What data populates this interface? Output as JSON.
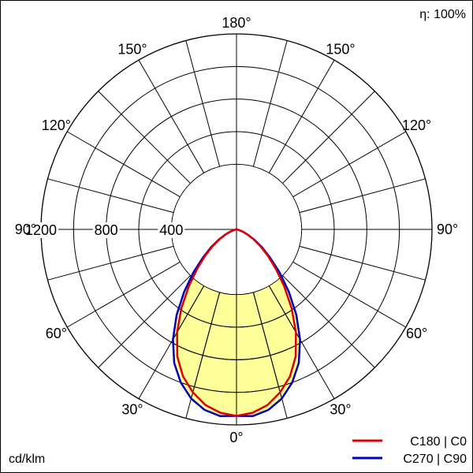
{
  "efficiency": "η: 100%",
  "unit_label": "cd/klm",
  "chart_data": {
    "type": "polar",
    "rmax": 1200,
    "radial_ticks": [
      {
        "value": 400,
        "label": "400"
      },
      {
        "value": 800,
        "label": "800"
      },
      {
        "value": 1200,
        "label": "1200"
      }
    ],
    "angle_labels": [
      {
        "angle": 0,
        "label": "0°"
      },
      {
        "angle": 30,
        "label": "30°"
      },
      {
        "angle": 60,
        "label": "60°"
      },
      {
        "angle": 90,
        "label": "90°"
      },
      {
        "angle": 120,
        "label": "120°"
      },
      {
        "angle": 150,
        "label": "150°"
      },
      {
        "angle": 180,
        "label": "180°"
      }
    ],
    "fill_color": "#ffff99",
    "series": [
      {
        "name": "C180 | C0",
        "color": "#dd0000",
        "angles": [
          0,
          5,
          10,
          15,
          20,
          25,
          30,
          35,
          40,
          45,
          50,
          55,
          60,
          65,
          70,
          75,
          80,
          85,
          90
        ],
        "values": [
          1145,
          1130,
          1095,
          1035,
          960,
          860,
          730,
          590,
          455,
          340,
          250,
          178,
          120,
          75,
          40,
          18,
          6,
          2,
          0
        ]
      },
      {
        "name": "C270 | C90",
        "color": "#0000bb",
        "angles": [
          0,
          5,
          10,
          15,
          20,
          25,
          30,
          35,
          40,
          45,
          50,
          55,
          60,
          65,
          70,
          75,
          80,
          85,
          90
        ],
        "values": [
          1145,
          1150,
          1125,
          1075,
          1000,
          905,
          780,
          640,
          500,
          375,
          270,
          190,
          125,
          78,
          42,
          18,
          6,
          2,
          0
        ]
      }
    ]
  }
}
